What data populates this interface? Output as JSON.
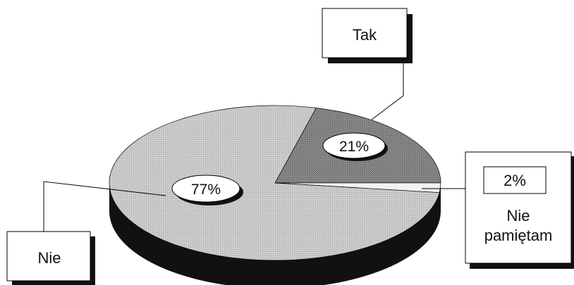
{
  "chart_data": {
    "type": "pie",
    "title": "",
    "style": "3d-exploded",
    "legend": "none",
    "slices": [
      {
        "label": "Tak",
        "value": 21,
        "value_label": "21%",
        "color": "#7f7f7f"
      },
      {
        "label": "Nie pamiętam",
        "value": 2,
        "value_label": "2%",
        "color": "#f2f2f2"
      },
      {
        "label": "Nie",
        "value": 77,
        "value_label": "77%",
        "color": "#c4c4c4"
      }
    ],
    "side_color": "#111111"
  }
}
